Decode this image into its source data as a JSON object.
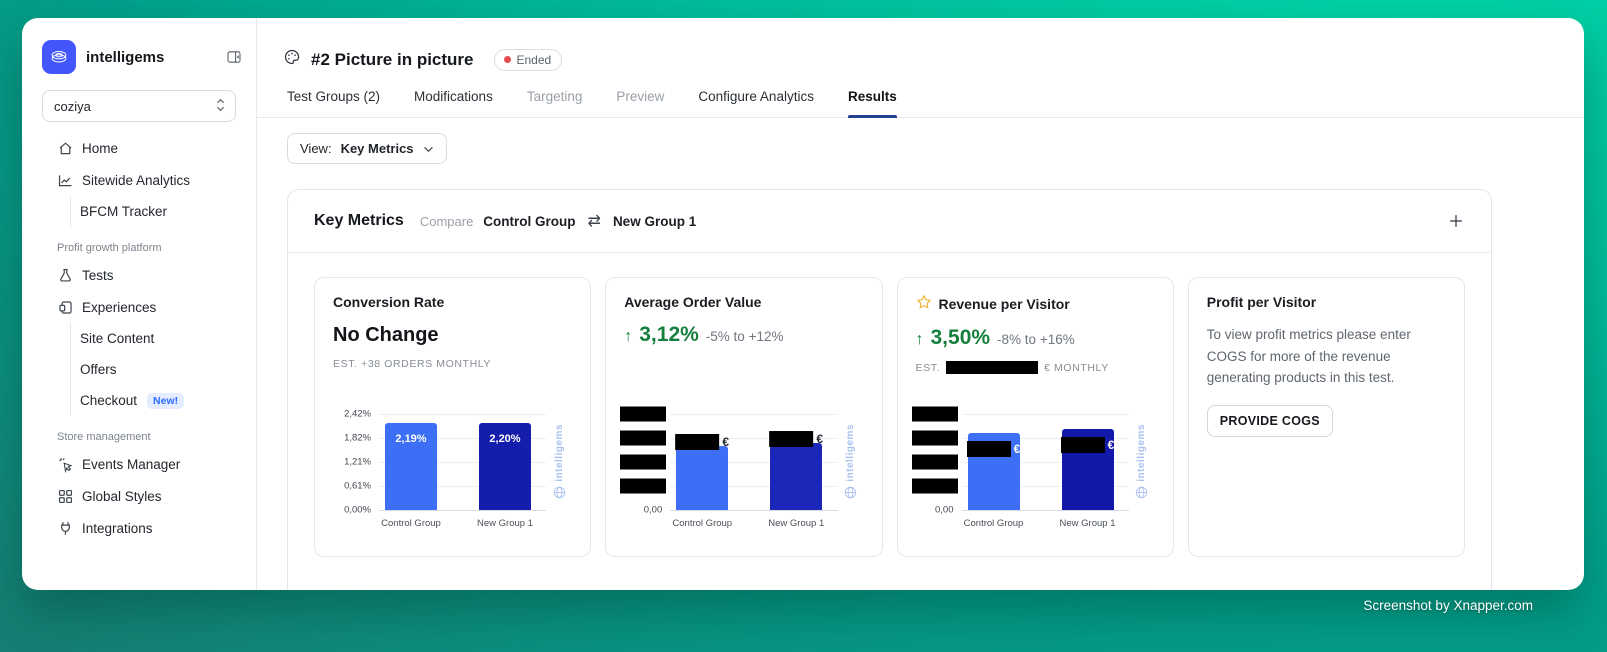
{
  "sidebar": {
    "brand": "intelligems",
    "store": "coziya",
    "nav": {
      "home": "Home",
      "sitewide_analytics": "Sitewide Analytics",
      "bfcm_tracker": "BFCM Tracker",
      "section_profit": "Profit growth platform",
      "tests": "Tests",
      "experiences": "Experiences",
      "site_content": "Site Content",
      "offers": "Offers",
      "checkout": "Checkout",
      "checkout_badge": "New!",
      "section_store": "Store management",
      "events_manager": "Events Manager",
      "global_styles": "Global Styles",
      "integrations": "Integrations"
    }
  },
  "header": {
    "title": "#2 Picture in picture",
    "status": "Ended"
  },
  "tabs": {
    "items": [
      {
        "label": "Test Groups (2)",
        "state": "normal"
      },
      {
        "label": "Modifications",
        "state": "normal"
      },
      {
        "label": "Targeting",
        "state": "muted"
      },
      {
        "label": "Preview",
        "state": "muted"
      },
      {
        "label": "Configure Analytics",
        "state": "normal"
      },
      {
        "label": "Results",
        "state": "active"
      }
    ]
  },
  "toolbar": {
    "view_label": "View:",
    "view_value": "Key Metrics"
  },
  "panel": {
    "title": "Key Metrics",
    "compare_label": "Compare",
    "group_a": "Control Group",
    "group_b": "New Group 1",
    "swap_glyph": "⇄"
  },
  "cards": {
    "conversion": {
      "title": "Conversion Rate",
      "headline": "No Change",
      "estimate": "EST. +38 ORDERS MONTHLY"
    },
    "aov": {
      "title": "Average Order Value",
      "arrow": "↑",
      "delta": "3,12%",
      "range": "-5% to +12%"
    },
    "rpv": {
      "title": "Revenue per Visitor",
      "arrow": "↑",
      "delta": "3,50%",
      "range": "-8% to +16%",
      "estimate_prefix": "EST.",
      "estimate_suffix": "€ MONTHLY",
      "estimate_value_redacted": true
    },
    "ppv": {
      "title": "Profit per Visitor",
      "body": "To view profit metrics please enter COGS for more of the revenue generating products in this test.",
      "button": "PROVIDE COGS"
    }
  },
  "chart_data": [
    {
      "type": "bar",
      "title": "Conversion Rate",
      "categories": [
        "Control Group",
        "New Group 1"
      ],
      "values": [
        2.19,
        2.2
      ],
      "value_labels": [
        "2,19%",
        "2,20%"
      ],
      "yticks": [
        "2,42%",
        "1,82%",
        "1,21%",
        "0,61%",
        "0,00%"
      ],
      "ylim": [
        0,
        2.42
      ],
      "bar_colors": [
        "#3C6FF5",
        "#151DAC"
      ],
      "label_style": "inside-white",
      "grid": true,
      "watermark": "intelligems"
    },
    {
      "type": "bar",
      "title": "Average Order Value",
      "categories": [
        "Control Group",
        "New Group 1"
      ],
      "values_redacted": true,
      "height_fractions": [
        0.67,
        0.7
      ],
      "yticks_redacted_count": 4,
      "ytick_bottom": "0,00",
      "currency": "€",
      "bar_colors": [
        "#3C6FF5",
        "#1B27B8"
      ],
      "label_style": "above-redacted-dark",
      "grid": true,
      "watermark": "intelligems"
    },
    {
      "type": "bar",
      "title": "Revenue per Visitor",
      "categories": [
        "Control Group",
        "New Group 1"
      ],
      "values_redacted": true,
      "height_fractions": [
        0.8,
        0.84
      ],
      "yticks_redacted_count": 4,
      "ytick_bottom": "0,00",
      "currency": "€",
      "bar_colors": [
        "#3C6FF5",
        "#1218A8"
      ],
      "label_style": "inside-redacted-white",
      "grid": true,
      "watermark": "intelligems"
    }
  ],
  "colors": {
    "control_bar": "#3C6FF5",
    "variant_bar": "#151DAC",
    "positive_green": "#15803d",
    "active_tab_underline": "#24408e",
    "ended_dot": "#e5484d",
    "background_teal": "#00bd9b"
  },
  "footer": {
    "credit": "Screenshot by Xnapper.com"
  }
}
